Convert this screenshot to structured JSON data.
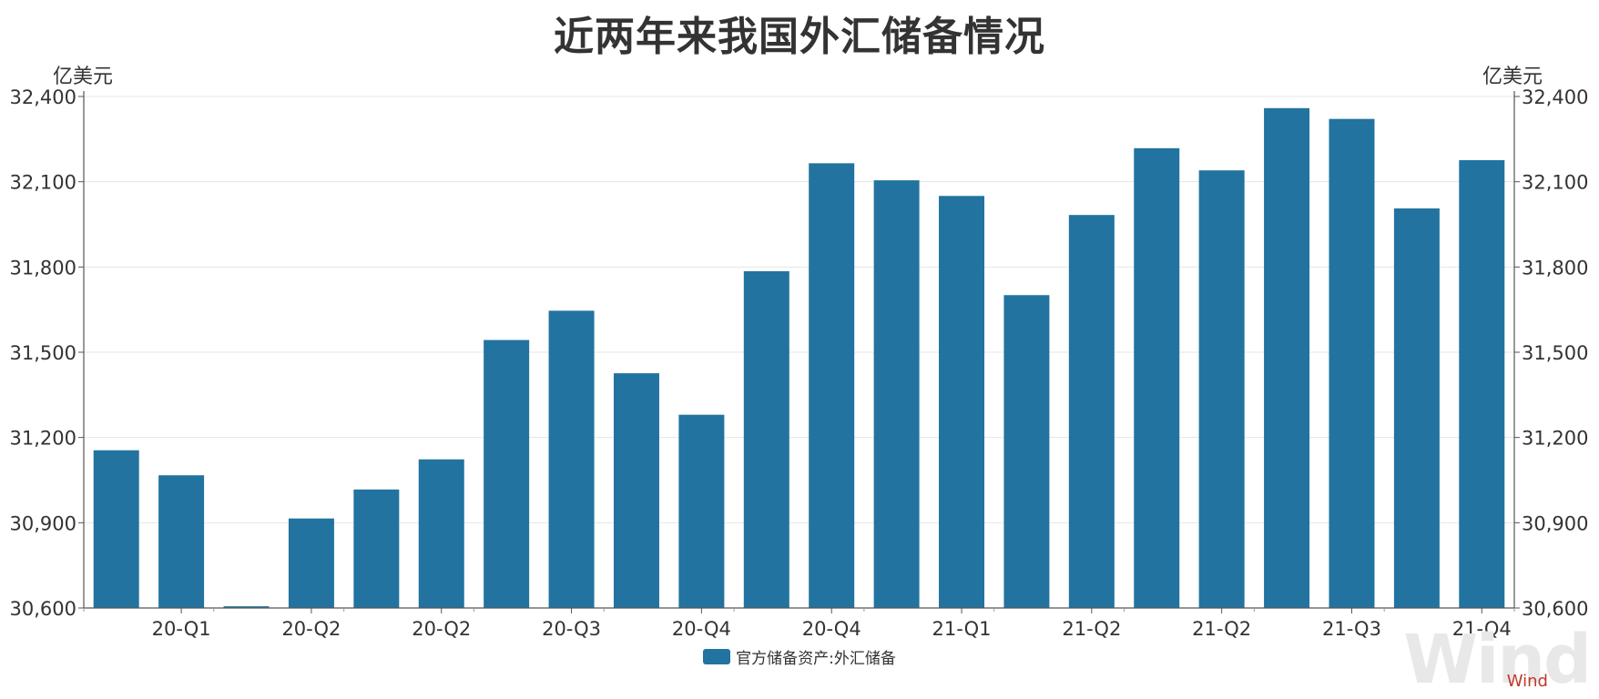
{
  "chart_data": {
    "type": "bar",
    "title": "近两年来我国外汇储备情况",
    "unit_left": "亿美元",
    "unit_right": "亿美元",
    "series": [
      {
        "name": "官方储备资产:外汇储备",
        "color": "#22739f",
        "values": [
          31155,
          31067,
          30606,
          30915,
          31017,
          31123,
          31543,
          31646,
          31426,
          31280,
          31785,
          32165,
          32105,
          32050,
          31701,
          31983,
          32218,
          32140,
          32359,
          32321,
          32006,
          32176
        ]
      }
    ],
    "x_tick_labels": [
      "20-Q1",
      "20-Q2",
      "20-Q2",
      "20-Q3",
      "20-Q4",
      "20-Q4",
      "21-Q1",
      "21-Q2",
      "21-Q2",
      "21-Q3",
      "21-Q4"
    ],
    "y_ticks": [
      "30,600",
      "30,900",
      "31,200",
      "31,500",
      "31,800",
      "32,100",
      "32,400"
    ],
    "ylim": [
      30600,
      32400
    ],
    "grid": true,
    "legend": "bottom-center",
    "watermark_big": "Wind",
    "watermark_small": "Wind"
  }
}
